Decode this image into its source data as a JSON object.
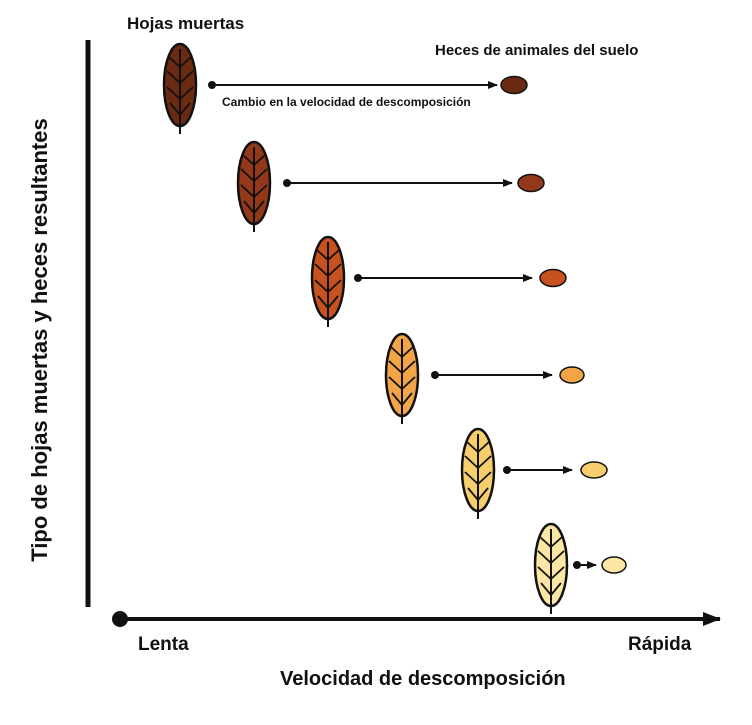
{
  "labels": {
    "dead_leaves": "Hojas  muertas",
    "soil_animal_feces": "Heces de animales del suelo",
    "decomposition_rate_change": "Cambio en la velocidad de descomposición",
    "slow": "Lenta",
    "fast": "Rápida",
    "x_axis": "Velocidad de descomposición",
    "y_axis": "Tipo de hojas muertas y heces resultantes"
  },
  "rows": [
    {
      "leaf_color": "#6b2a12",
      "feces_color": "#6b2a12"
    },
    {
      "leaf_color": "#93381a",
      "feces_color": "#93381a"
    },
    {
      "leaf_color": "#c6521f",
      "feces_color": "#c6521f"
    },
    {
      "leaf_color": "#f2a546",
      "feces_color": "#f2a546"
    },
    {
      "leaf_color": "#f6cf6c",
      "feces_color": "#f6cf6c"
    },
    {
      "leaf_color": "#fbe6a4",
      "feces_color": "#fbe6a4"
    }
  ],
  "icons": {
    "leaf": "leaf-icon",
    "feces": "feces-pellet-icon"
  }
}
